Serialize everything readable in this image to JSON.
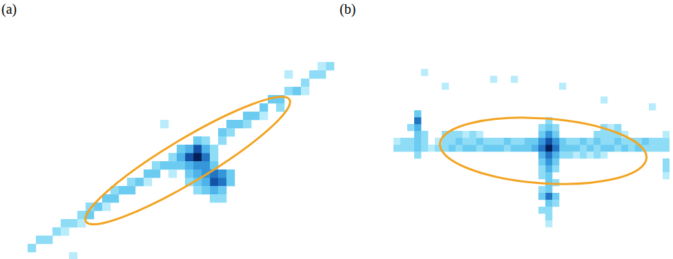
{
  "chart_data": [
    {
      "type": "heatmap",
      "title": "(a)",
      "tick_labels": false,
      "xlim": [
        -0.5,
        37.5
      ],
      "ylim": [
        -0.5,
        23.5
      ],
      "cells": [
        [
          0,
          1,
          2
        ],
        [
          1,
          2,
          2
        ],
        [
          2,
          2,
          2
        ],
        [
          3,
          3,
          2
        ],
        [
          4,
          4,
          2
        ],
        [
          4,
          3,
          1
        ],
        [
          5,
          4,
          2
        ],
        [
          6,
          5,
          2
        ],
        [
          6,
          4,
          1
        ],
        [
          7,
          5,
          3
        ],
        [
          7,
          6,
          2
        ],
        [
          8,
          6,
          3
        ],
        [
          9,
          7,
          3
        ],
        [
          9,
          6,
          1
        ],
        [
          10,
          7,
          3
        ],
        [
          10,
          8,
          2
        ],
        [
          11,
          8,
          3
        ],
        [
          12,
          8,
          3
        ],
        [
          12,
          9,
          2
        ],
        [
          13,
          9,
          3
        ],
        [
          14,
          10,
          3
        ],
        [
          14,
          9,
          1
        ],
        [
          15,
          10,
          3
        ],
        [
          15,
          11,
          2
        ],
        [
          16,
          11,
          3
        ],
        [
          17,
          11,
          3
        ],
        [
          17,
          12,
          2
        ],
        [
          23,
          15,
          3
        ],
        [
          23,
          14,
          2
        ],
        [
          24,
          16,
          3
        ],
        [
          24,
          15,
          2
        ],
        [
          25,
          16,
          3
        ],
        [
          26,
          17,
          3
        ],
        [
          26,
          16,
          2
        ],
        [
          27,
          17,
          3
        ],
        [
          28,
          18,
          3
        ],
        [
          28,
          17,
          1
        ],
        [
          29,
          19,
          3
        ],
        [
          30,
          19,
          3
        ],
        [
          30,
          18,
          2
        ],
        [
          31,
          20,
          2
        ],
        [
          32,
          20,
          3
        ],
        [
          33,
          21,
          2
        ],
        [
          33,
          20,
          1
        ],
        [
          34,
          22,
          2
        ],
        [
          35,
          22,
          2
        ],
        [
          36,
          23,
          2
        ],
        [
          20,
          12,
          9
        ],
        [
          19,
          12,
          7
        ],
        [
          20,
          13,
          7
        ],
        [
          21,
          12,
          6
        ],
        [
          21,
          11,
          5
        ],
        [
          22,
          9,
          7
        ],
        [
          23,
          9,
          6
        ],
        [
          22,
          10,
          6
        ],
        [
          23,
          10,
          5
        ],
        [
          21,
          10,
          5
        ],
        [
          20,
          11,
          5
        ],
        [
          19,
          11,
          4
        ],
        [
          18,
          12,
          4
        ],
        [
          18,
          11,
          3
        ],
        [
          19,
          10,
          3
        ],
        [
          20,
          10,
          4
        ],
        [
          21,
          9,
          4
        ],
        [
          22,
          8,
          4
        ],
        [
          20,
          9,
          3
        ],
        [
          23,
          8,
          3
        ],
        [
          24,
          9,
          3
        ],
        [
          24,
          10,
          3
        ],
        [
          21,
          8,
          3
        ],
        [
          19,
          13,
          4
        ],
        [
          21,
          13,
          4
        ],
        [
          20,
          14,
          3
        ],
        [
          22,
          11,
          3
        ],
        [
          22,
          12,
          2
        ],
        [
          18,
          13,
          3
        ],
        [
          21,
          14,
          2
        ],
        [
          22,
          13,
          2
        ],
        [
          17,
          10,
          1
        ],
        [
          19,
          9,
          2
        ],
        [
          20,
          8,
          2
        ],
        [
          23,
          7,
          2
        ],
        [
          22,
          7,
          2
        ],
        [
          35,
          23,
          1
        ],
        [
          5,
          0,
          1
        ],
        [
          31,
          22,
          1
        ],
        [
          16,
          16,
          1
        ]
      ],
      "ellipse": {
        "cx": 18.83,
        "cy": 11.58,
        "rx": 14.33,
        "ry": 2.6,
        "angle": 31
      },
      "color": "#f2a422"
    },
    {
      "type": "heatmap",
      "title": "(b)",
      "tick_labels": false,
      "xlim": [
        -0.5,
        39.5
      ],
      "ylim": [
        -0.5,
        22.5
      ],
      "cells": [
        [
          0,
          11,
          2
        ],
        [
          1,
          11,
          2
        ],
        [
          0,
          12,
          1
        ],
        [
          1,
          12,
          2
        ],
        [
          2,
          11,
          2
        ],
        [
          2,
          12,
          2
        ],
        [
          3,
          11,
          3
        ],
        [
          3,
          12,
          3
        ],
        [
          3,
          13,
          3
        ],
        [
          3,
          14,
          4
        ],
        [
          3,
          15,
          6
        ],
        [
          3,
          16,
          3
        ],
        [
          2,
          14,
          2
        ],
        [
          4,
          13,
          2
        ],
        [
          4,
          11,
          2
        ],
        [
          4,
          12,
          2
        ],
        [
          3,
          10,
          2
        ],
        [
          5,
          11,
          1
        ],
        [
          6,
          11,
          2
        ],
        [
          7,
          11,
          2
        ],
        [
          8,
          11,
          3
        ],
        [
          9,
          11,
          2
        ],
        [
          10,
          11,
          3
        ],
        [
          11,
          11,
          3
        ],
        [
          12,
          11,
          2
        ],
        [
          13,
          11,
          3
        ],
        [
          14,
          11,
          3
        ],
        [
          15,
          11,
          3
        ],
        [
          16,
          11,
          2
        ],
        [
          17,
          11,
          3
        ],
        [
          18,
          11,
          3
        ],
        [
          19,
          11,
          3
        ],
        [
          20,
          11,
          4
        ],
        [
          6,
          12,
          1
        ],
        [
          7,
          12,
          2
        ],
        [
          8,
          12,
          2
        ],
        [
          9,
          12,
          3
        ],
        [
          10,
          12,
          2
        ],
        [
          11,
          12,
          2
        ],
        [
          12,
          12,
          3
        ],
        [
          13,
          12,
          2
        ],
        [
          14,
          12,
          2
        ],
        [
          15,
          12,
          2
        ],
        [
          16,
          12,
          3
        ],
        [
          17,
          12,
          2
        ],
        [
          18,
          12,
          2
        ],
        [
          19,
          12,
          3
        ],
        [
          20,
          12,
          3
        ],
        [
          24,
          11,
          3
        ],
        [
          25,
          11,
          3
        ],
        [
          26,
          11,
          3
        ],
        [
          27,
          11,
          2
        ],
        [
          28,
          11,
          3
        ],
        [
          29,
          11,
          2
        ],
        [
          30,
          11,
          3
        ],
        [
          31,
          11,
          3
        ],
        [
          32,
          11,
          2
        ],
        [
          33,
          11,
          3
        ],
        [
          34,
          11,
          2
        ],
        [
          35,
          11,
          3
        ],
        [
          36,
          11,
          2
        ],
        [
          37,
          11,
          2
        ],
        [
          38,
          11,
          2
        ],
        [
          39,
          11,
          2
        ],
        [
          24,
          12,
          3
        ],
        [
          25,
          12,
          2
        ],
        [
          26,
          12,
          2
        ],
        [
          27,
          12,
          3
        ],
        [
          28,
          12,
          2
        ],
        [
          29,
          12,
          3
        ],
        [
          30,
          12,
          2
        ],
        [
          31,
          12,
          2
        ],
        [
          32,
          12,
          3
        ],
        [
          33,
          12,
          2
        ],
        [
          34,
          12,
          2
        ],
        [
          35,
          12,
          2
        ],
        [
          36,
          12,
          3
        ],
        [
          37,
          12,
          2
        ],
        [
          38,
          12,
          2
        ],
        [
          39,
          12,
          2
        ],
        [
          7,
          13,
          2
        ],
        [
          8,
          13,
          2
        ],
        [
          9,
          13,
          2
        ],
        [
          10,
          13,
          1
        ],
        [
          11,
          13,
          2
        ],
        [
          12,
          13,
          1
        ],
        [
          29,
          13,
          2
        ],
        [
          30,
          13,
          2
        ],
        [
          31,
          13,
          2
        ],
        [
          32,
          13,
          2
        ],
        [
          33,
          13,
          1
        ],
        [
          30,
          14,
          2
        ],
        [
          31,
          14,
          1
        ],
        [
          32,
          14,
          2
        ],
        [
          24,
          10,
          2
        ],
        [
          25,
          10,
          2
        ],
        [
          26,
          10,
          1
        ],
        [
          27,
          10,
          2
        ],
        [
          28,
          10,
          1
        ],
        [
          29,
          10,
          2
        ],
        [
          30,
          10,
          1
        ],
        [
          22,
          11,
          9
        ],
        [
          22,
          12,
          7
        ],
        [
          21,
          11,
          6
        ],
        [
          23,
          11,
          6
        ],
        [
          21,
          12,
          5
        ],
        [
          23,
          12,
          5
        ],
        [
          22,
          13,
          5
        ],
        [
          21,
          13,
          3
        ],
        [
          23,
          13,
          3
        ],
        [
          22,
          14,
          3
        ],
        [
          22,
          15,
          2
        ],
        [
          21,
          14,
          2
        ],
        [
          23,
          14,
          2
        ],
        [
          22,
          10,
          6
        ],
        [
          21,
          10,
          4
        ],
        [
          23,
          10,
          4
        ],
        [
          22,
          9,
          5
        ],
        [
          21,
          9,
          3
        ],
        [
          23,
          9,
          3
        ],
        [
          22,
          8,
          4
        ],
        [
          21,
          8,
          2
        ],
        [
          23,
          8,
          2
        ],
        [
          22,
          7,
          3
        ],
        [
          21,
          7,
          2
        ],
        [
          22,
          6,
          3
        ],
        [
          23,
          6,
          2
        ],
        [
          22,
          5,
          3
        ],
        [
          21,
          5,
          2
        ],
        [
          22,
          4,
          6
        ],
        [
          21,
          4,
          3
        ],
        [
          23,
          4,
          3
        ],
        [
          22,
          3,
          3
        ],
        [
          22,
          2,
          2
        ],
        [
          21,
          2,
          2
        ],
        [
          22,
          1,
          2
        ],
        [
          22,
          0,
          1
        ],
        [
          23,
          3,
          2
        ],
        [
          39,
          9,
          2
        ],
        [
          39,
          8,
          2
        ],
        [
          39,
          7,
          1
        ],
        [
          39,
          13,
          1
        ],
        [
          4,
          22,
          1
        ],
        [
          7,
          20,
          1
        ],
        [
          14,
          21,
          1
        ],
        [
          17,
          21,
          1
        ],
        [
          24,
          20,
          1
        ],
        [
          30,
          18,
          1
        ],
        [
          37,
          17,
          1
        ]
      ],
      "ellipse": {
        "cx": 21.2,
        "cy": 10.6,
        "rx": 15,
        "ry": 4.7,
        "angle": -4
      },
      "color": "#f2a422"
    }
  ]
}
